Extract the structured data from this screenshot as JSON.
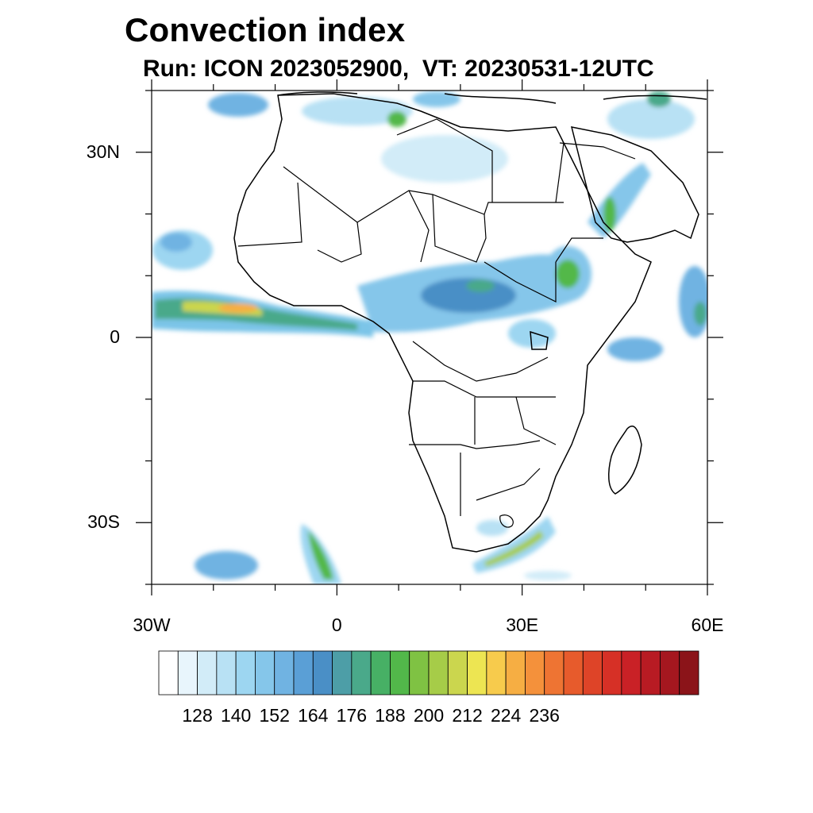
{
  "title": "Convection index",
  "subtitle": "Run: ICON 2023052900,  VT: 20230531-12UTC",
  "map": {
    "extent": {
      "lon_min": -30,
      "lon_max": 60,
      "lat_min": -40,
      "lat_max": 40
    },
    "lat_ticks": [
      {
        "value": 30,
        "label": "30N"
      },
      {
        "value": 0,
        "label": "0"
      },
      {
        "value": -30,
        "label": "30S"
      }
    ],
    "lon_ticks": [
      {
        "value": -30,
        "label": "30W"
      },
      {
        "value": 0,
        "label": "0"
      },
      {
        "value": 30,
        "label": "30E"
      },
      {
        "value": 60,
        "label": "60E"
      }
    ]
  },
  "colorbar": {
    "levels": [
      128,
      140,
      152,
      164,
      176,
      188,
      200,
      212,
      224,
      236
    ],
    "colors": [
      "#ffffff",
      "#e8f5fc",
      "#d2ecf8",
      "#b8e1f4",
      "#9dd6f1",
      "#85c6ea",
      "#70b3e2",
      "#5a9fd6",
      "#4a8fc6",
      "#4d9ea7",
      "#4aa98a",
      "#47b065",
      "#52b84a",
      "#7fc243",
      "#a6cc48",
      "#cbd64e",
      "#ede552",
      "#f7cb4c",
      "#f6ae43",
      "#f4913b",
      "#ee7433",
      "#e75b2c",
      "#de4428",
      "#d63026",
      "#c92126",
      "#b81b23",
      "#a5171f",
      "#8b1419"
    ],
    "label_values": [
      128,
      140,
      152,
      164,
      176,
      188,
      200,
      212,
      224,
      236
    ]
  }
}
